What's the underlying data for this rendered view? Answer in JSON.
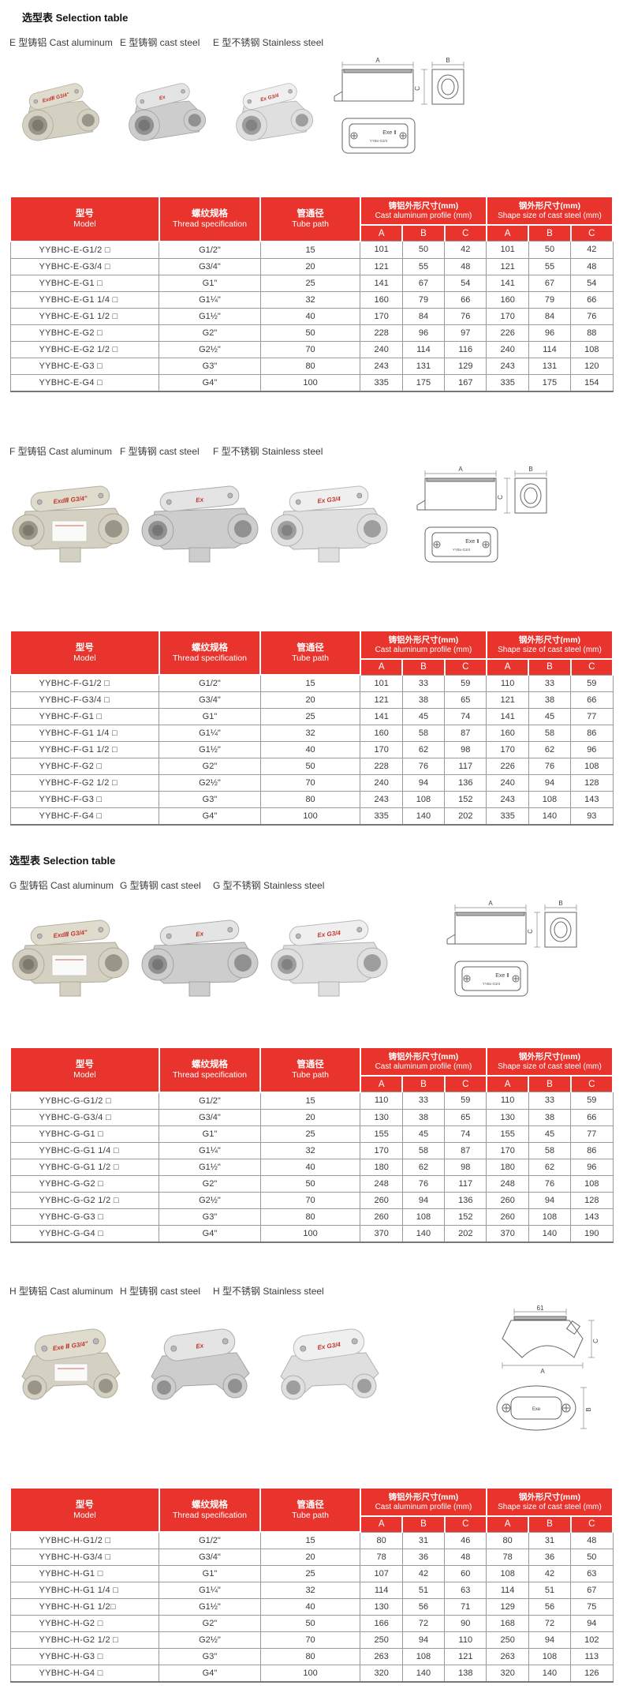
{
  "page": {
    "title": "选型表 Selection table",
    "title2": "选型表 Selection table"
  },
  "colors": {
    "header_red": "#e8342c",
    "mark_red": "#c2372c",
    "row_line": "#9a9a9a"
  },
  "table_header": {
    "model": {
      "zh": "型号",
      "en": "Model"
    },
    "thread": {
      "zh": "螺纹规格",
      "en": "Thread specification"
    },
    "tube": {
      "zh": "管通径",
      "en": "Tube path"
    },
    "aluminum": {
      "zh": "铸铝外形尺寸(mm)",
      "en": "Cast aluminum profile (mm)"
    },
    "steel": {
      "zh": "钢外形尺寸(mm)",
      "en": "Shape size of cast steel (mm)"
    },
    "abc": [
      "A",
      "B",
      "C"
    ]
  },
  "drawing": {
    "dim_a": "A",
    "dim_b": "B",
    "dim_c": "C",
    "dim_61": "61",
    "exe2_label": "Exe Ⅱ",
    "exe_label": "Exe",
    "sub_label": "YYBx-G3/4"
  },
  "sections": [
    {
      "id": "E",
      "variant": "e",
      "labels": [
        "E 型铸铝 Cast aluminum",
        "E 型铸钢 cast steel",
        "E 型不锈钢 Stainless steel"
      ],
      "marks": [
        "ExdⅡ G3/4\"",
        "Ex",
        "Ex G3/4"
      ],
      "rows": [
        {
          "model": "YYBHC-E-G1/2 □",
          "thread": "G1/2\"",
          "tube": "15",
          "alu": [
            "101",
            "50",
            "42"
          ],
          "steel": [
            "101",
            "50",
            "42"
          ]
        },
        {
          "model": "YYBHC-E-G3/4 □",
          "thread": "G3/4\"",
          "tube": "20",
          "alu": [
            "121",
            "55",
            "48"
          ],
          "steel": [
            "121",
            "55",
            "48"
          ]
        },
        {
          "model": "YYBHC-E-G1 □",
          "thread": "G1\"",
          "tube": "25",
          "alu": [
            "141",
            "67",
            "54"
          ],
          "steel": [
            "141",
            "67",
            "54"
          ]
        },
        {
          "model": "YYBHC-E-G1 1/4 □",
          "thread": "G1¼\"",
          "tube": "32",
          "alu": [
            "160",
            "79",
            "66"
          ],
          "steel": [
            "160",
            "79",
            "66"
          ]
        },
        {
          "model": "YYBHC-E-G1 1/2 □",
          "thread": "G1½\"",
          "tube": "40",
          "alu": [
            "170",
            "84",
            "76"
          ],
          "steel": [
            "170",
            "84",
            "76"
          ]
        },
        {
          "model": "YYBHC-E-G2 □",
          "thread": "G2\"",
          "tube": "50",
          "alu": [
            "228",
            "96",
            "97"
          ],
          "steel": [
            "226",
            "96",
            "88"
          ]
        },
        {
          "model": "YYBHC-E-G2 1/2 □",
          "thread": "G2½\"",
          "tube": "70",
          "alu": [
            "240",
            "114",
            "116"
          ],
          "steel": [
            "240",
            "114",
            "108"
          ]
        },
        {
          "model": "YYBHC-E-G3 □",
          "thread": "G3\"",
          "tube": "80",
          "alu": [
            "243",
            "131",
            "129"
          ],
          "steel": [
            "243",
            "131",
            "120"
          ]
        },
        {
          "model": "YYBHC-E-G4 □",
          "thread": "G4\"",
          "tube": "100",
          "alu": [
            "335",
            "175",
            "167"
          ],
          "steel": [
            "335",
            "175",
            "154"
          ]
        }
      ]
    },
    {
      "id": "F",
      "variant": "fg",
      "labels": [
        "F 型铸铝 Cast aluminum",
        "F 型铸钢 cast steel",
        "F 型不锈钢 Stainless steel"
      ],
      "marks": [
        "ExdⅡ G3/4\"",
        "Ex",
        "Ex G3/4"
      ],
      "rows": [
        {
          "model": "YYBHC-F-G1/2 □",
          "thread": "G1/2\"",
          "tube": "15",
          "alu": [
            "101",
            "33",
            "59"
          ],
          "steel": [
            "110",
            "33",
            "59"
          ]
        },
        {
          "model": "YYBHC-F-G3/4 □",
          "thread": "G3/4\"",
          "tube": "20",
          "alu": [
            "121",
            "38",
            "65"
          ],
          "steel": [
            "121",
            "38",
            "66"
          ]
        },
        {
          "model": "YYBHC-F-G1 □",
          "thread": "G1\"",
          "tube": "25",
          "alu": [
            "141",
            "45",
            "74"
          ],
          "steel": [
            "141",
            "45",
            "77"
          ]
        },
        {
          "model": "YYBHC-F-G1 1/4 □",
          "thread": "G1¼\"",
          "tube": "32",
          "alu": [
            "160",
            "58",
            "87"
          ],
          "steel": [
            "160",
            "58",
            "86"
          ]
        },
        {
          "model": "YYBHC-F-G1 1/2 □",
          "thread": "G1½\"",
          "tube": "40",
          "alu": [
            "170",
            "62",
            "98"
          ],
          "steel": [
            "170",
            "62",
            "96"
          ]
        },
        {
          "model": "YYBHC-F-G2 □",
          "thread": "G2\"",
          "tube": "50",
          "alu": [
            "228",
            "76",
            "117"
          ],
          "steel": [
            "226",
            "76",
            "108"
          ]
        },
        {
          "model": "YYBHC-F-G2 1/2 □",
          "thread": "G2½\"",
          "tube": "70",
          "alu": [
            "240",
            "94",
            "136"
          ],
          "steel": [
            "240",
            "94",
            "128"
          ]
        },
        {
          "model": "YYBHC-F-G3 □",
          "thread": "G3\"",
          "tube": "80",
          "alu": [
            "243",
            "108",
            "152"
          ],
          "steel": [
            "243",
            "108",
            "143"
          ]
        },
        {
          "model": "YYBHC-F-G4 □",
          "thread": "G4\"",
          "tube": "100",
          "alu": [
            "335",
            "140",
            "202"
          ],
          "steel": [
            "335",
            "140",
            "93"
          ]
        }
      ]
    },
    {
      "id": "G",
      "variant": "fg",
      "labels": [
        "G 型铸铝 Cast aluminum",
        "G 型铸钢 cast steel",
        "G 型不锈钢 Stainless steel"
      ],
      "marks": [
        "ExdⅡ G3/4\"",
        "Ex",
        "Ex G3/4"
      ],
      "rows": [
        {
          "model": "YYBHC-G-G1/2 □",
          "thread": "G1/2\"",
          "tube": "15",
          "alu": [
            "110",
            "33",
            "59"
          ],
          "steel": [
            "110",
            "33",
            "59"
          ]
        },
        {
          "model": "YYBHC-G-G3/4 □",
          "thread": "G3/4\"",
          "tube": "20",
          "alu": [
            "130",
            "38",
            "65"
          ],
          "steel": [
            "130",
            "38",
            "66"
          ]
        },
        {
          "model": "YYBHC-G-G1 □",
          "thread": "G1\"",
          "tube": "25",
          "alu": [
            "155",
            "45",
            "74"
          ],
          "steel": [
            "155",
            "45",
            "77"
          ]
        },
        {
          "model": "YYBHC-G-G1 1/4 □",
          "thread": "G1¼\"",
          "tube": "32",
          "alu": [
            "170",
            "58",
            "87"
          ],
          "steel": [
            "170",
            "58",
            "86"
          ]
        },
        {
          "model": "YYBHC-G-G1 1/2 □",
          "thread": "G1½\"",
          "tube": "40",
          "alu": [
            "180",
            "62",
            "98"
          ],
          "steel": [
            "180",
            "62",
            "96"
          ]
        },
        {
          "model": "YYBHC-G-G2 □",
          "thread": "G2\"",
          "tube": "50",
          "alu": [
            "248",
            "76",
            "117"
          ],
          "steel": [
            "248",
            "76",
            "108"
          ]
        },
        {
          "model": "YYBHC-G-G2 1/2 □",
          "thread": "G2½\"",
          "tube": "70",
          "alu": [
            "260",
            "94",
            "136"
          ],
          "steel": [
            "260",
            "94",
            "128"
          ]
        },
        {
          "model": "YYBHC-G-G3 □",
          "thread": "G3\"",
          "tube": "80",
          "alu": [
            "260",
            "108",
            "152"
          ],
          "steel": [
            "260",
            "108",
            "143"
          ]
        },
        {
          "model": "YYBHC-G-G4 □",
          "thread": "G4\"",
          "tube": "100",
          "alu": [
            "370",
            "140",
            "202"
          ],
          "steel": [
            "370",
            "140",
            "190"
          ]
        }
      ]
    },
    {
      "id": "H",
      "variant": "h",
      "labels": [
        "H 型铸铝 Cast aluminum",
        "H 型铸钢 cast steel",
        "H 型不锈钢 Stainless steel"
      ],
      "marks": [
        "Exe Ⅱ G3/4\"",
        "Ex",
        "Ex G3/4"
      ],
      "rows": [
        {
          "model": "YYBHC-H-G1/2 □",
          "thread": "G1/2\"",
          "tube": "15",
          "alu": [
            "80",
            "31",
            "46"
          ],
          "steel": [
            "80",
            "31",
            "48"
          ]
        },
        {
          "model": "YYBHC-H-G3/4 □",
          "thread": "G3/4\"",
          "tube": "20",
          "alu": [
            "78",
            "36",
            "48"
          ],
          "steel": [
            "78",
            "36",
            "50"
          ]
        },
        {
          "model": "YYBHC-H-G1 □",
          "thread": "G1\"",
          "tube": "25",
          "alu": [
            "107",
            "42",
            "60"
          ],
          "steel": [
            "108",
            "42",
            "63"
          ]
        },
        {
          "model": "YYBHC-H-G1 1/4 □",
          "thread": "G1¼\"",
          "tube": "32",
          "alu": [
            "114",
            "51",
            "63"
          ],
          "steel": [
            "114",
            "51",
            "67"
          ]
        },
        {
          "model": "YYBHC-H-G1 1/2□",
          "thread": "G1½\"",
          "tube": "40",
          "alu": [
            "130",
            "56",
            "71"
          ],
          "steel": [
            "129",
            "56",
            "75"
          ]
        },
        {
          "model": "YYBHC-H-G2 □",
          "thread": "G2\"",
          "tube": "50",
          "alu": [
            "166",
            "72",
            "90"
          ],
          "steel": [
            "168",
            "72",
            "94"
          ]
        },
        {
          "model": "YYBHC-H-G2 1/2 □",
          "thread": "G2½\"",
          "tube": "70",
          "alu": [
            "250",
            "94",
            "110"
          ],
          "steel": [
            "250",
            "94",
            "102"
          ]
        },
        {
          "model": "YYBHC-H-G3 □",
          "thread": "G3\"",
          "tube": "80",
          "alu": [
            "263",
            "108",
            "121"
          ],
          "steel": [
            "263",
            "108",
            "113"
          ]
        },
        {
          "model": "YYBHC-H-G4 □",
          "thread": "G4\"",
          "tube": "100",
          "alu": [
            "320",
            "140",
            "138"
          ],
          "steel": [
            "320",
            "140",
            "126"
          ]
        }
      ]
    }
  ]
}
